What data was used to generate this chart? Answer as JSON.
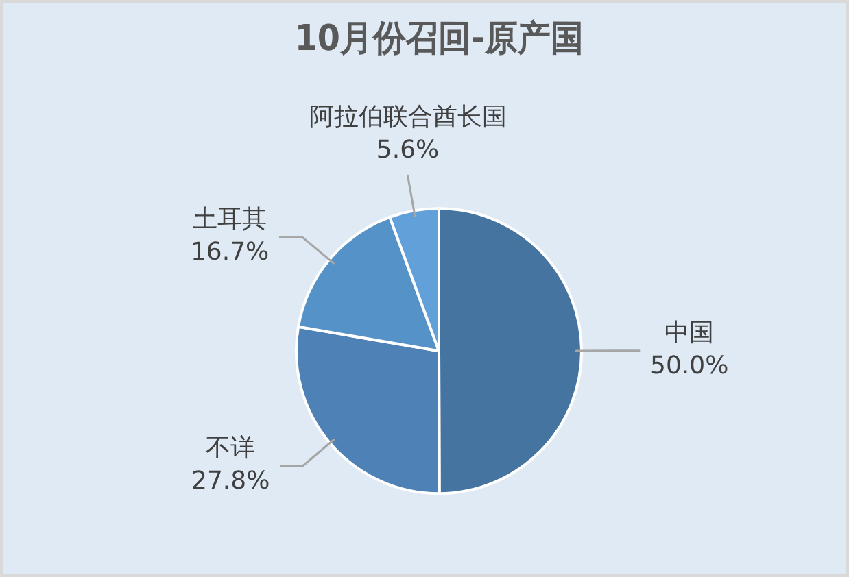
{
  "chart_data": {
    "type": "pie",
    "title": "10月份召回-原产国",
    "categories": [
      "中国",
      "不详",
      "土耳其",
      "阿拉伯联合酋长国"
    ],
    "values": [
      50.0,
      27.8,
      16.7,
      5.6
    ],
    "colors": [
      "#4674a0",
      "#4e82b6",
      "#5592c8",
      "#62a0da"
    ],
    "value_labels": [
      "50.0%",
      "27.8%",
      "16.7%",
      "5.6%"
    ]
  }
}
